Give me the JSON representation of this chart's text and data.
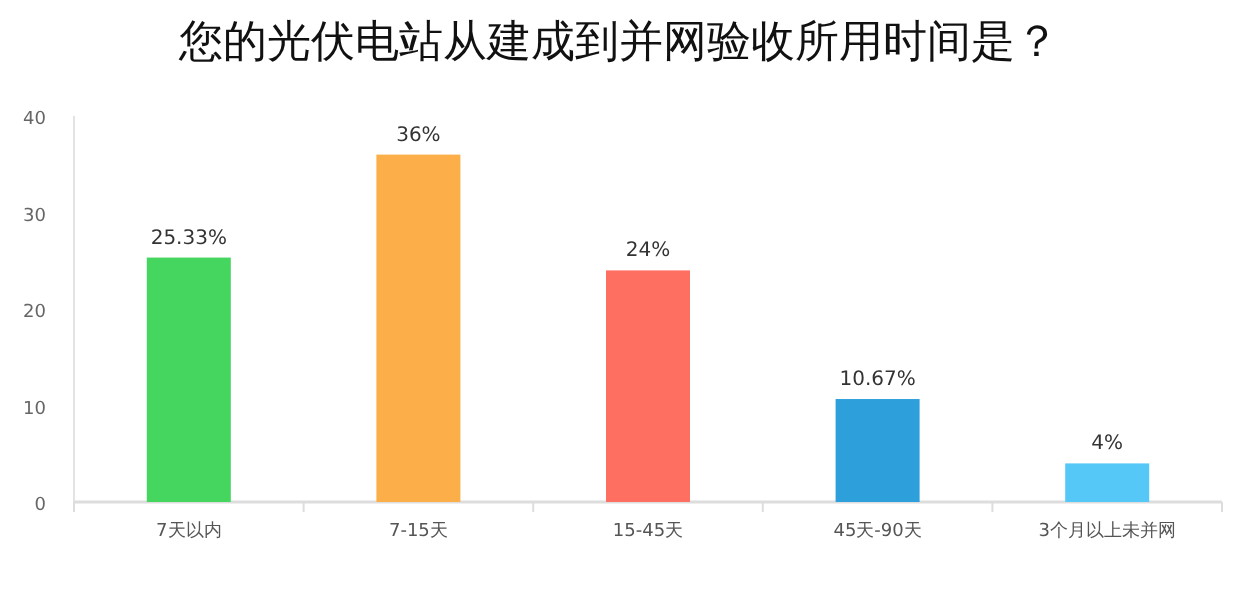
{
  "chart_data": {
    "type": "bar",
    "title": "您的光伏电站从建成到并网验收所用时间是？",
    "categories": [
      "7天以内",
      "7-15天",
      "15-45天",
      "45天-90天",
      "3个月以上未并网"
    ],
    "values": [
      25.33,
      36,
      24,
      10.67,
      4
    ],
    "colors": [
      "#45d65f",
      "#fcae48",
      "#ff6f61",
      "#2d9fdb",
      "#55c8f8"
    ],
    "value_labels": [
      "25.33%",
      "36%",
      "24%",
      "10.67%",
      "4%"
    ],
    "ylim": [
      0,
      40
    ],
    "yticks": [
      0,
      10,
      20,
      30,
      40
    ],
    "grid": false
  }
}
